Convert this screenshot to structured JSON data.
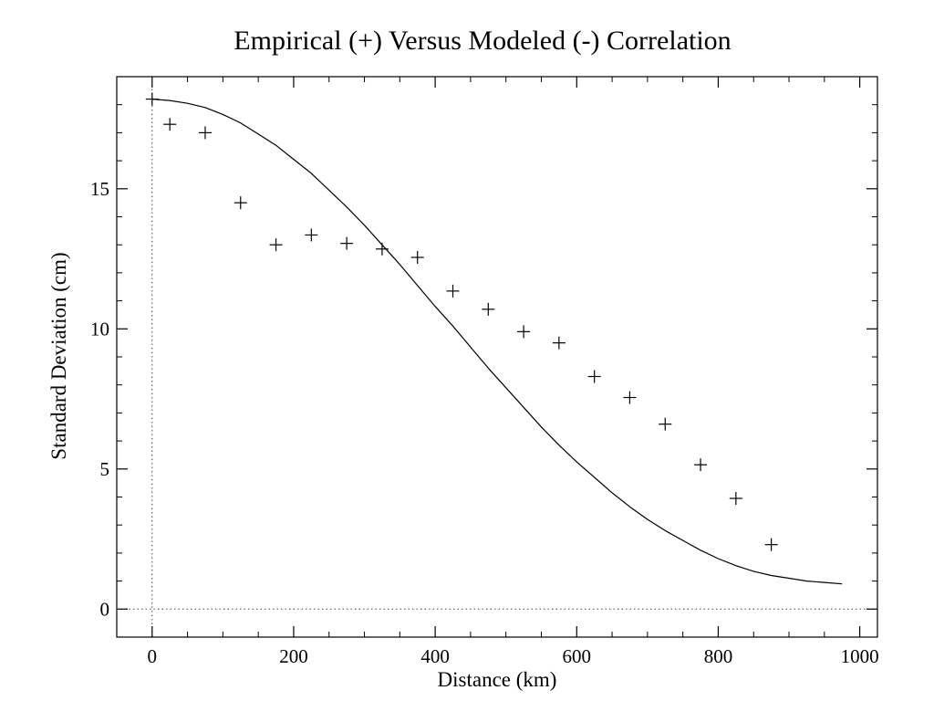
{
  "chart_data": {
    "type": "scatter",
    "title": "Empirical (+) Versus Modeled (-) Correlation",
    "xlabel": "Distance (km)",
    "ylabel": "Standard Deviation (cm)",
    "xlim": [
      -50,
      1025
    ],
    "ylim": [
      -1,
      19
    ],
    "x_ticks": [
      0,
      200,
      400,
      600,
      800,
      1000
    ],
    "y_ticks": [
      0,
      5,
      10,
      15
    ],
    "x_minor_step": 50,
    "y_minor_step": 1,
    "grid": false,
    "reference_lines": {
      "vertical_x": 0,
      "horizontal_y": 0,
      "style": "dotted"
    },
    "series": [
      {
        "kind": "scatter",
        "marker": "plus",
        "color": "#000000",
        "x": [
          0,
          25,
          75,
          125,
          175,
          225,
          275,
          325,
          375,
          425,
          475,
          525,
          575,
          625,
          675,
          725,
          775,
          825,
          875
        ],
        "y": [
          18.2,
          17.3,
          17.0,
          14.5,
          13.0,
          13.35,
          13.05,
          12.85,
          12.55,
          11.35,
          10.7,
          9.9,
          9.5,
          8.3,
          7.55,
          6.6,
          5.15,
          3.95,
          2.3
        ]
      },
      {
        "kind": "line",
        "color": "#000000",
        "x": [
          0,
          25,
          50,
          75,
          100,
          125,
          150,
          175,
          200,
          225,
          250,
          275,
          300,
          325,
          350,
          375,
          400,
          425,
          450,
          475,
          500,
          525,
          550,
          575,
          600,
          625,
          650,
          675,
          700,
          725,
          750,
          775,
          800,
          825,
          850,
          875,
          900,
          925,
          950,
          975
        ],
        "y": [
          18.2,
          18.15,
          18.05,
          17.9,
          17.65,
          17.35,
          16.95,
          16.55,
          16.05,
          15.55,
          14.95,
          14.35,
          13.7,
          13.0,
          12.3,
          11.55,
          10.8,
          10.1,
          9.35,
          8.6,
          7.9,
          7.2,
          6.5,
          5.85,
          5.25,
          4.7,
          4.15,
          3.65,
          3.2,
          2.8,
          2.45,
          2.1,
          1.8,
          1.55,
          1.35,
          1.2,
          1.1,
          1.0,
          0.95,
          0.9
        ]
      }
    ]
  }
}
